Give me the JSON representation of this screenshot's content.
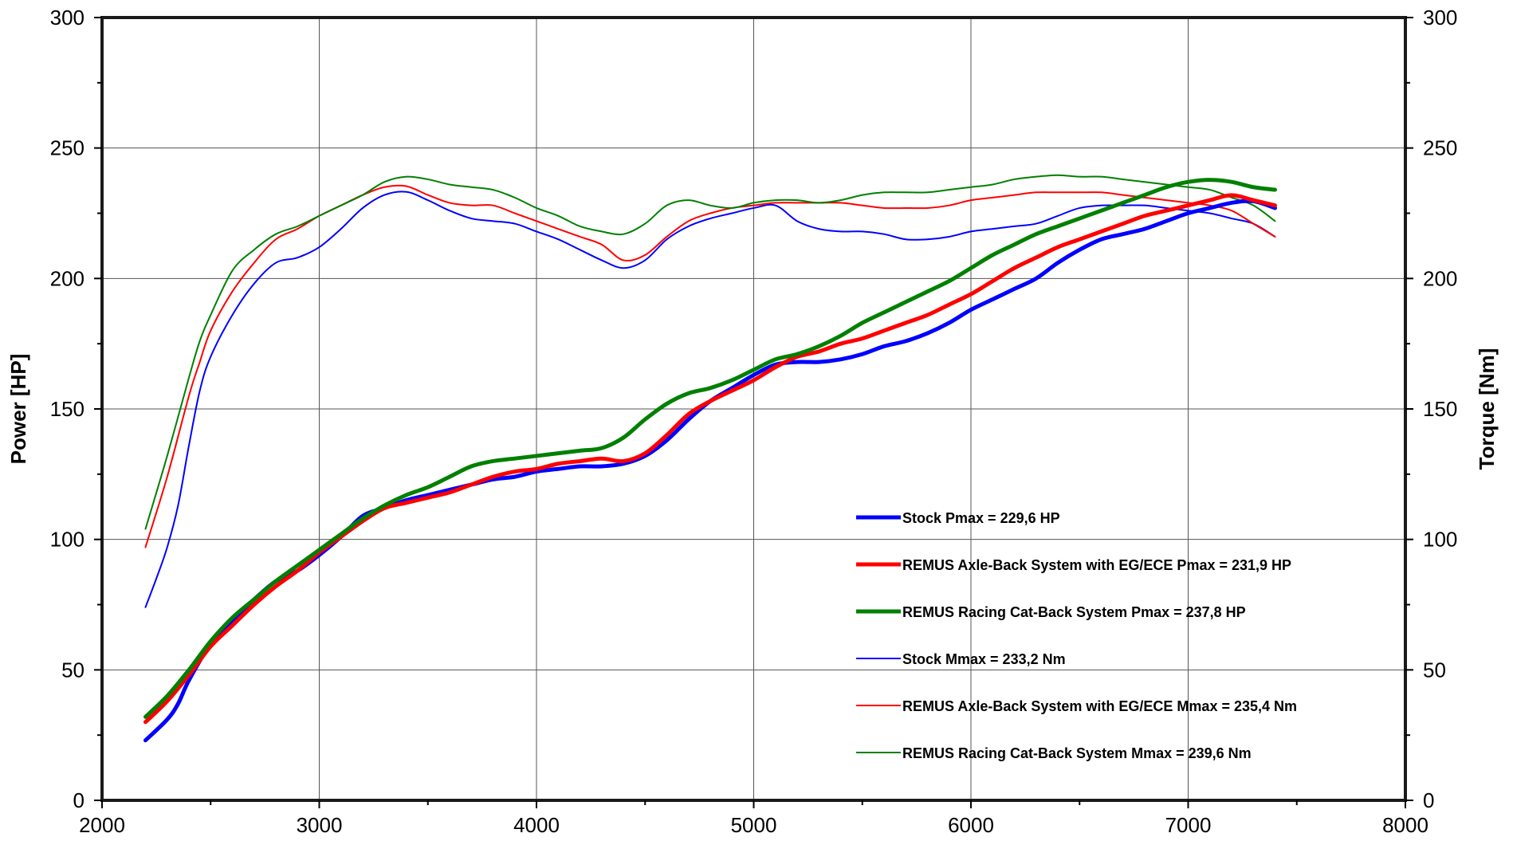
{
  "chart_data": {
    "type": "line",
    "xlim": [
      2000,
      8000
    ],
    "ylim_left": [
      0,
      300
    ],
    "ylim_right": [
      0,
      300
    ],
    "x_ticks": [
      2000,
      3000,
      4000,
      5000,
      6000,
      7000,
      8000
    ],
    "y_ticks": [
      0,
      50,
      100,
      150,
      200,
      250,
      300
    ],
    "ylabel_left": "Power [HP]",
    "ylabel_right": "Torque [Nm]",
    "grid": true,
    "legend_position": "lower-right",
    "series": [
      {
        "name": "Stock Pmax = 229,6 HP",
        "color": "#0000ff",
        "style": "thick",
        "x": [
          2200,
          2300,
          2350,
          2400,
          2500,
          2600,
          2700,
          2800,
          2900,
          3000,
          3100,
          3200,
          3300,
          3400,
          3500,
          3600,
          3700,
          3800,
          3900,
          4000,
          4100,
          4200,
          4300,
          4400,
          4500,
          4600,
          4700,
          4800,
          4900,
          5000,
          5100,
          5200,
          5300,
          5400,
          5500,
          5600,
          5700,
          5800,
          5900,
          6000,
          6100,
          6200,
          6300,
          6400,
          6500,
          6600,
          6700,
          6800,
          6900,
          7000,
          7100,
          7200,
          7300,
          7400
        ],
        "y": [
          23,
          31,
          37,
          46,
          60,
          69,
          77,
          84,
          88,
          94,
          101,
          109,
          112,
          115,
          117,
          119,
          121,
          123,
          124,
          126,
          127,
          128,
          128,
          129,
          132,
          138,
          146,
          153,
          158,
          163,
          167,
          168,
          168,
          169,
          171,
          174,
          176,
          179,
          183,
          188,
          192,
          196,
          200,
          206,
          211,
          215,
          217,
          219,
          222,
          225,
          227,
          229,
          229.6,
          227
        ]
      },
      {
        "name": "REMUS Axle-Back System with EG/ECE Pmax = 231,9 HP",
        "color": "#ff0000",
        "style": "thick",
        "x": [
          2200,
          2300,
          2400,
          2500,
          2600,
          2700,
          2800,
          2900,
          3000,
          3100,
          3200,
          3300,
          3400,
          3500,
          3600,
          3700,
          3800,
          3900,
          4000,
          4100,
          4200,
          4300,
          4400,
          4500,
          4600,
          4700,
          4800,
          4900,
          5000,
          5100,
          5200,
          5300,
          5400,
          5500,
          5600,
          5700,
          5800,
          5900,
          6000,
          6100,
          6200,
          6300,
          6400,
          6500,
          6600,
          6700,
          6800,
          6900,
          7000,
          7100,
          7200,
          7300,
          7400
        ],
        "y": [
          30,
          38,
          48,
          59,
          67,
          75,
          82,
          88,
          95,
          101,
          107,
          112,
          114,
          116,
          118,
          121,
          124,
          126,
          127,
          129,
          130,
          131,
          130,
          133,
          140,
          148,
          153,
          157,
          161,
          166,
          170,
          172,
          175,
          177,
          180,
          183,
          186,
          190,
          194,
          199,
          204,
          208,
          212,
          215,
          218,
          221,
          224,
          226,
          228,
          230,
          231.9,
          230,
          228
        ]
      },
      {
        "name": "REMUS Racing Cat-Back System Pmax = 237,8 HP",
        "color": "#008000",
        "style": "thick",
        "x": [
          2200,
          2300,
          2400,
          2500,
          2600,
          2700,
          2800,
          2900,
          3000,
          3100,
          3200,
          3300,
          3400,
          3500,
          3600,
          3700,
          3800,
          3900,
          4000,
          4100,
          4200,
          4300,
          4400,
          4500,
          4600,
          4700,
          4800,
          4900,
          5000,
          5100,
          5200,
          5300,
          5400,
          5500,
          5600,
          5700,
          5800,
          5900,
          6000,
          6100,
          6200,
          6300,
          6400,
          6500,
          6600,
          6700,
          6800,
          6900,
          7000,
          7100,
          7200,
          7300,
          7400
        ],
        "y": [
          32,
          40,
          50,
          61,
          70,
          77,
          84,
          90,
          96,
          102,
          108,
          113,
          117,
          120,
          124,
          128,
          130,
          131,
          132,
          133,
          134,
          135,
          139,
          146,
          152,
          156,
          158,
          161,
          165,
          169,
          171,
          174,
          178,
          183,
          187,
          191,
          195,
          199,
          204,
          209,
          213,
          217,
          220,
          223,
          226,
          229,
          232,
          235,
          237,
          237.8,
          237,
          235,
          234
        ]
      },
      {
        "name": "Stock Mmax = 233,2 Nm",
        "color": "#0000ff",
        "style": "thin",
        "x": [
          2200,
          2250,
          2300,
          2350,
          2400,
          2450,
          2500,
          2600,
          2700,
          2800,
          2900,
          3000,
          3100,
          3200,
          3300,
          3400,
          3500,
          3600,
          3700,
          3800,
          3900,
          4000,
          4100,
          4200,
          4300,
          4400,
          4500,
          4600,
          4700,
          4800,
          4900,
          5000,
          5100,
          5200,
          5300,
          5400,
          5500,
          5600,
          5700,
          5800,
          5900,
          6000,
          6100,
          6200,
          6300,
          6400,
          6500,
          6600,
          6700,
          6800,
          6900,
          7000,
          7100,
          7200,
          7300,
          7400
        ],
        "y": [
          74,
          85,
          97,
          113,
          136,
          157,
          170,
          186,
          198,
          206,
          208,
          212,
          219,
          227,
          232,
          233.2,
          230,
          226,
          223,
          222,
          221,
          218,
          215,
          211,
          207,
          204,
          207,
          215,
          220,
          223,
          225,
          227,
          228,
          222,
          219,
          218,
          218,
          217,
          215,
          215,
          216,
          218,
          219,
          220,
          221,
          224,
          227,
          228,
          228,
          228,
          227,
          226,
          225,
          223,
          221,
          216
        ]
      },
      {
        "name": "REMUS Axle-Back System with EG/ECE Mmax = 235,4 Nm",
        "color": "#ff0000",
        "style": "thin",
        "x": [
          2200,
          2300,
          2400,
          2450,
          2500,
          2600,
          2700,
          2800,
          2900,
          3000,
          3100,
          3200,
          3300,
          3400,
          3500,
          3600,
          3700,
          3800,
          3900,
          4000,
          4100,
          4200,
          4300,
          4400,
          4500,
          4600,
          4700,
          4800,
          4900,
          5000,
          5100,
          5200,
          5300,
          5400,
          5500,
          5600,
          5700,
          5800,
          5900,
          6000,
          6100,
          6200,
          6300,
          6400,
          6500,
          6600,
          6700,
          6800,
          6900,
          7000,
          7100,
          7200,
          7300,
          7400
        ],
        "y": [
          97,
          124,
          155,
          168,
          180,
          195,
          206,
          215,
          219,
          224,
          228,
          232,
          235,
          235.4,
          232,
          229,
          228,
          228,
          225,
          222,
          219,
          216,
          213,
          207,
          209,
          216,
          222,
          225,
          227,
          228,
          229,
          229,
          229,
          229,
          228,
          227,
          227,
          227,
          228,
          230,
          231,
          232,
          233,
          233,
          233,
          233,
          232,
          231,
          230,
          229,
          228,
          226,
          221,
          216
        ]
      },
      {
        "name": "REMUS Racing Cat-Back System Mmax = 239,6 Nm",
        "color": "#008000",
        "style": "thin",
        "x": [
          2200,
          2300,
          2400,
          2450,
          2500,
          2600,
          2700,
          2800,
          2900,
          3000,
          3100,
          3200,
          3300,
          3400,
          3500,
          3600,
          3700,
          3800,
          3900,
          4000,
          4100,
          4200,
          4300,
          4400,
          4500,
          4600,
          4700,
          4800,
          4900,
          5000,
          5100,
          5200,
          5300,
          5400,
          5500,
          5600,
          5700,
          5800,
          5900,
          6000,
          6100,
          6200,
          6300,
          6400,
          6500,
          6600,
          6700,
          6800,
          6900,
          7000,
          7100,
          7200,
          7300,
          7400
        ],
        "y": [
          104,
          132,
          162,
          176,
          186,
          203,
          211,
          217,
          220,
          224,
          228,
          232,
          237,
          239,
          238,
          236,
          235,
          234,
          231,
          227,
          224,
          220,
          218,
          217,
          221,
          228,
          230,
          228,
          227,
          229,
          230,
          230,
          229,
          230,
          232,
          233,
          233,
          233,
          234,
          235,
          236,
          238,
          239,
          239.6,
          239,
          239,
          238,
          237,
          236,
          235,
          234,
          231,
          228,
          222
        ]
      }
    ]
  }
}
